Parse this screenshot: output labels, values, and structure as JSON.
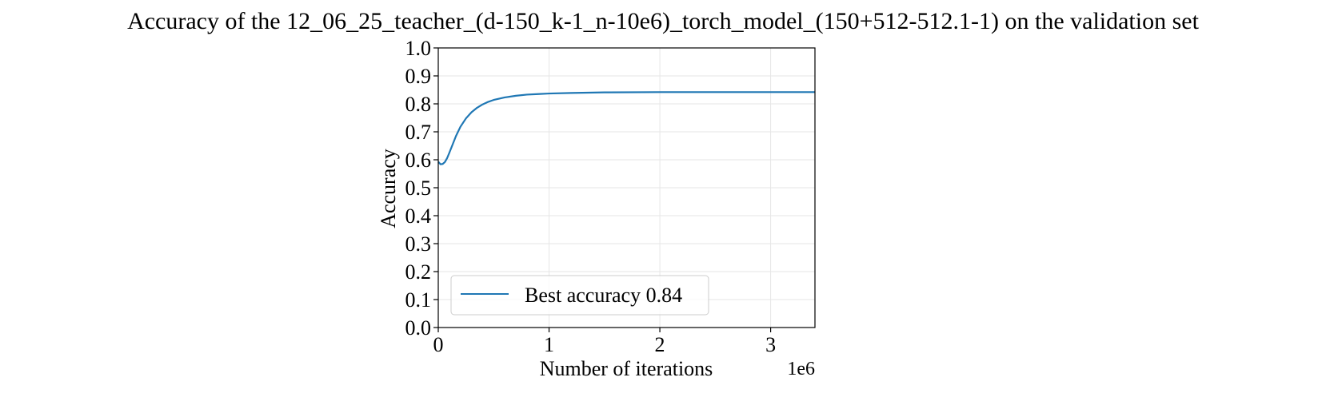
{
  "chart_data": {
    "type": "line",
    "title": "Accuracy of the 12_06_25_teacher_(d-150_k-1_n-10e6)_torch_model_(150+512-512.1-1) on the validation set",
    "xlabel": "Number of iterations",
    "ylabel": "Accuracy",
    "x_offset_label": "1e6",
    "x_scale": 1000000,
    "xlim": [
      0,
      3400000
    ],
    "ylim": [
      0.0,
      1.0
    ],
    "x_ticks": [
      0,
      1000000,
      2000000,
      3000000
    ],
    "x_tick_labels": [
      "0",
      "1",
      "2",
      "3"
    ],
    "y_ticks": [
      0.0,
      0.1,
      0.2,
      0.3,
      0.4,
      0.5,
      0.6,
      0.7,
      0.8,
      0.9,
      1.0
    ],
    "y_tick_labels": [
      "0.0",
      "0.1",
      "0.2",
      "0.3",
      "0.4",
      "0.5",
      "0.6",
      "0.7",
      "0.8",
      "0.9",
      "1.0"
    ],
    "grid": true,
    "legend_position": "lower-left",
    "series": [
      {
        "name": "Best accuracy 0.84",
        "color": "#1f77b4",
        "x": [
          0,
          20000,
          40000,
          60000,
          80000,
          100000,
          130000,
          160000,
          200000,
          250000,
          300000,
          350000,
          400000,
          450000,
          500000,
          600000,
          700000,
          800000,
          900000,
          1000000,
          1200000,
          1500000,
          2000000,
          2500000,
          3000000,
          3400000
        ],
        "y": [
          0.593,
          0.584,
          0.585,
          0.592,
          0.606,
          0.625,
          0.655,
          0.685,
          0.718,
          0.748,
          0.77,
          0.786,
          0.798,
          0.807,
          0.814,
          0.823,
          0.829,
          0.833,
          0.835,
          0.837,
          0.839,
          0.841,
          0.842,
          0.842,
          0.842,
          0.842
        ]
      }
    ]
  }
}
